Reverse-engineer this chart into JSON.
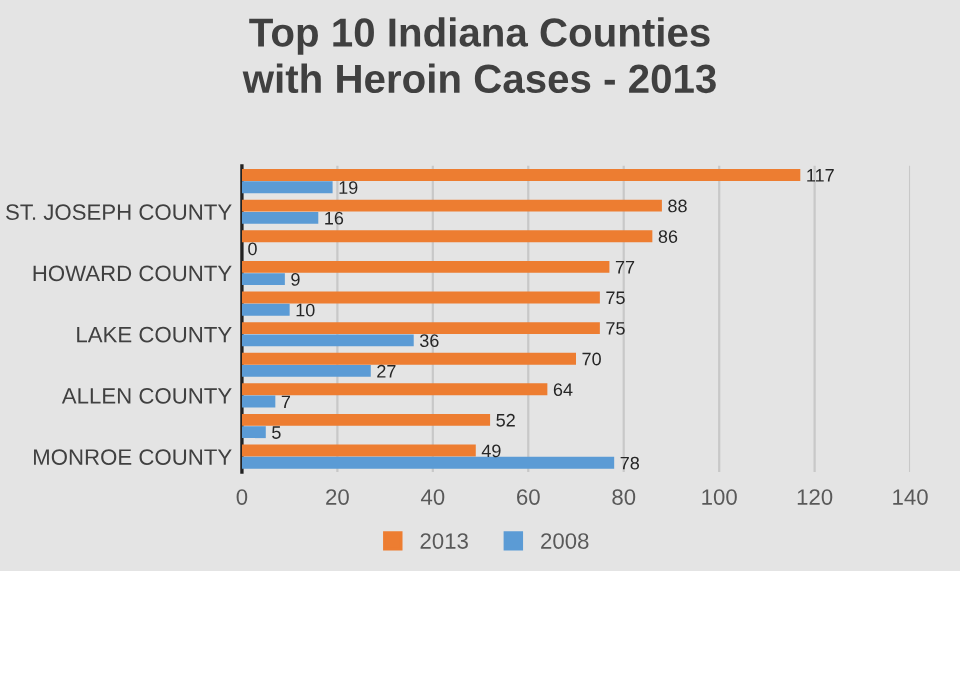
{
  "chart_data": {
    "type": "bar",
    "orientation": "horizontal",
    "title": "Top 10 Indiana Counties with Heroin Cases - 2013",
    "categories": [
      null,
      "ST. JOSEPH COUNTY",
      null,
      "HOWARD COUNTY",
      null,
      "LAKE COUNTY",
      null,
      "ALLEN COUNTY",
      null,
      "MONROE COUNTY"
    ],
    "series": [
      {
        "name": "2013",
        "color": "#ed7d31",
        "values": [
          117,
          88,
          86,
          77,
          75,
          75,
          70,
          64,
          52,
          49
        ]
      },
      {
        "name": "2008",
        "color": "#5b9bd5",
        "values": [
          19,
          16,
          0,
          9,
          10,
          36,
          27,
          7,
          5,
          78
        ]
      }
    ],
    "xlim": [
      0,
      140
    ],
    "xticks": [
      0,
      20,
      40,
      60,
      80,
      100,
      120,
      140
    ],
    "grid": "x",
    "legend": "bottom",
    "data_labels": true
  }
}
